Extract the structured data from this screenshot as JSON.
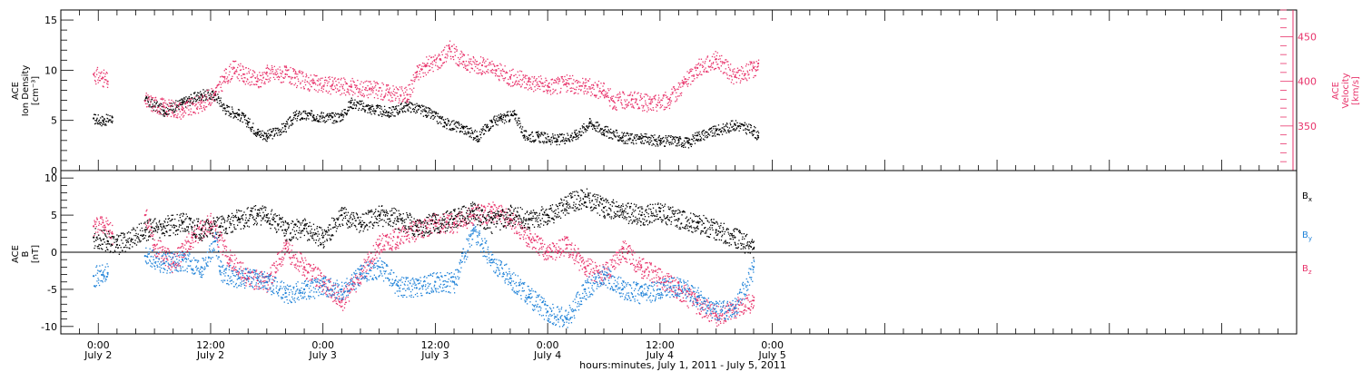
{
  "colors": {
    "axis": "#000000",
    "ion_density": "#000000",
    "velocity": "#e8336b",
    "bx": "#000000",
    "by": "#1f82d8",
    "bz": "#e8336b"
  },
  "x_axis": {
    "range_hours": [
      -4,
      128
    ],
    "ticks": [
      {
        "hour": 0,
        "time": "0:00",
        "day": "July 2"
      },
      {
        "hour": 12,
        "time": "12:00",
        "day": "July 2"
      },
      {
        "hour": 24,
        "time": "0:00",
        "day": "July 3"
      },
      {
        "hour": 36,
        "time": "12:00",
        "day": "July 3"
      },
      {
        "hour": 48,
        "time": "0:00",
        "day": "July 4"
      },
      {
        "hour": 60,
        "time": "12:00",
        "day": "July 4"
      },
      {
        "hour": 72,
        "time": "0:00",
        "day": "July 5"
      }
    ],
    "label": "hours:minutes, July  1, 2011 - July  5, 2011"
  },
  "chart_data": [
    {
      "type": "scatter",
      "panel": "top",
      "ylabel_left": [
        "ACE",
        "Ion Density",
        "[cm⁻³]"
      ],
      "ylabel_right": [
        "ACE",
        "Velocity",
        "[km/s]"
      ],
      "ylim_left": [
        0,
        16
      ],
      "yticks_left": [
        0,
        5,
        10,
        15
      ],
      "ylim_right": [
        300,
        480
      ],
      "yticks_right": [
        350,
        400,
        450
      ],
      "series": [
        {
          "axis": "left",
          "color_key": "ion_density",
          "points": [
            [
              -0.5,
              5.2
            ],
            [
              0.5,
              5.0
            ],
            [
              1.5,
              5.3
            ],
            [
              5.0,
              7.0
            ],
            [
              7.0,
              6.0
            ],
            [
              9.0,
              6.8
            ],
            [
              11.0,
              7.6
            ],
            [
              12.5,
              7.5
            ],
            [
              13.5,
              6.2
            ],
            [
              15.0,
              5.6
            ],
            [
              16.0,
              4.8
            ],
            [
              17.0,
              3.8
            ],
            [
              18.0,
              3.5
            ],
            [
              20.0,
              4.4
            ],
            [
              21.0,
              5.5
            ],
            [
              23.0,
              5.5
            ],
            [
              25.0,
              5.3
            ],
            [
              26.0,
              5.5
            ],
            [
              27.0,
              6.8
            ],
            [
              29.0,
              6.2
            ],
            [
              31.0,
              5.8
            ],
            [
              33.0,
              6.5
            ],
            [
              35.0,
              5.9
            ],
            [
              37.0,
              4.8
            ],
            [
              39.0,
              4.2
            ],
            [
              40.5,
              3.4
            ],
            [
              42.0,
              4.9
            ],
            [
              43.0,
              5.2
            ],
            [
              44.5,
              5.6
            ],
            [
              45.5,
              3.5
            ],
            [
              47.0,
              3.4
            ],
            [
              49.0,
              3.1
            ],
            [
              51.0,
              3.6
            ],
            [
              52.5,
              4.8
            ],
            [
              54.0,
              4.0
            ],
            [
              56.0,
              3.3
            ],
            [
              58.0,
              3.2
            ],
            [
              60.0,
              3.0
            ],
            [
              62.0,
              3.0
            ],
            [
              63.0,
              2.8
            ],
            [
              64.0,
              3.5
            ],
            [
              66.0,
              4.0
            ],
            [
              68.0,
              4.6
            ],
            [
              70.0,
              4.0
            ],
            [
              70.5,
              3.3
            ]
          ]
        },
        {
          "axis": "right",
          "color_key": "velocity",
          "points": [
            [
              -0.5,
              408
            ],
            [
              0.5,
              404
            ],
            [
              1.0,
              400
            ],
            [
              5.0,
              378
            ],
            [
              7.0,
              372
            ],
            [
              9.0,
              368
            ],
            [
              11.0,
              376
            ],
            [
              12.5,
              388
            ],
            [
              13.5,
              405
            ],
            [
              14.5,
              415
            ],
            [
              15.5,
              408
            ],
            [
              17.0,
              400
            ],
            [
              18.0,
              410
            ],
            [
              20.0,
              408
            ],
            [
              21.0,
              404
            ],
            [
              23.0,
              398
            ],
            [
              25.0,
              396
            ],
            [
              27.0,
              394
            ],
            [
              29.0,
              392
            ],
            [
              31.0,
              388
            ],
            [
              33.0,
              385
            ],
            [
              34.0,
              410
            ],
            [
              35.0,
              418
            ],
            [
              36.5,
              425
            ],
            [
              37.5,
              437
            ],
            [
              39.0,
              422
            ],
            [
              41.0,
              418
            ],
            [
              42.5,
              412
            ],
            [
              44.0,
              405
            ],
            [
              46.0,
              400
            ],
            [
              48.0,
              395
            ],
            [
              50.0,
              398
            ],
            [
              52.0,
              395
            ],
            [
              54.0,
              390
            ],
            [
              55.0,
              378
            ],
            [
              57.0,
              380
            ],
            [
              59.0,
              375
            ],
            [
              61.0,
              380
            ],
            [
              62.5,
              398
            ],
            [
              64.0,
              415
            ],
            [
              66.0,
              425
            ],
            [
              68.0,
              405
            ],
            [
              70.0,
              415
            ],
            [
              70.5,
              420
            ]
          ]
        }
      ]
    },
    {
      "type": "scatter",
      "panel": "bottom",
      "ylabel_left": [
        "ACE",
        "B",
        "[nT]"
      ],
      "ylim": [
        -11,
        11
      ],
      "yticks": [
        -10,
        -5,
        0,
        5,
        10
      ],
      "zero_line": true,
      "legend": [
        {
          "text": "B",
          "sub": "x",
          "color_key": "bx"
        },
        {
          "text": "B",
          "sub": "y",
          "color_key": "by"
        },
        {
          "text": "B",
          "sub": "z",
          "color_key": "bz"
        }
      ],
      "series": [
        {
          "color_key": "bx",
          "points": [
            [
              -0.5,
              2.0
            ],
            [
              1.0,
              1.5
            ],
            [
              2.0,
              1.0
            ],
            [
              5.0,
              3.0
            ],
            [
              7.0,
              3.5
            ],
            [
              9.0,
              4.0
            ],
            [
              11.0,
              3.0
            ],
            [
              13.0,
              3.5
            ],
            [
              15.0,
              4.5
            ],
            [
              17.0,
              5.2
            ],
            [
              18.0,
              5.0
            ],
            [
              20.0,
              3.0
            ],
            [
              22.0,
              3.2
            ],
            [
              24.0,
              2.0
            ],
            [
              26.0,
              5.0
            ],
            [
              28.0,
              4.0
            ],
            [
              30.0,
              5.0
            ],
            [
              32.0,
              4.5
            ],
            [
              34.0,
              3.5
            ],
            [
              36.0,
              4.0
            ],
            [
              38.0,
              4.5
            ],
            [
              40.0,
              5.5
            ],
            [
              42.0,
              4.0
            ],
            [
              44.0,
              5.0
            ],
            [
              46.0,
              4.5
            ],
            [
              48.0,
              5.0
            ],
            [
              50.0,
              6.5
            ],
            [
              52.0,
              7.5
            ],
            [
              54.0,
              6.0
            ],
            [
              56.0,
              5.5
            ],
            [
              58.0,
              5.0
            ],
            [
              60.0,
              5.5
            ],
            [
              62.0,
              4.5
            ],
            [
              64.0,
              4.0
            ],
            [
              66.0,
              3.0
            ],
            [
              68.0,
              2.0
            ],
            [
              70.0,
              0.5
            ]
          ]
        },
        {
          "color_key": "by",
          "points": [
            [
              -0.5,
              -3.2
            ],
            [
              0.5,
              -3.0
            ],
            [
              1.0,
              -2.8
            ],
            [
              5.0,
              -0.5
            ],
            [
              7.0,
              -1.5
            ],
            [
              9.0,
              -1.0
            ],
            [
              11.0,
              -2.0
            ],
            [
              12.5,
              1.5
            ],
            [
              13.0,
              -2.5
            ],
            [
              15.0,
              -3.5
            ],
            [
              17.0,
              -3.5
            ],
            [
              18.0,
              -4.0
            ],
            [
              20.0,
              -5.5
            ],
            [
              22.0,
              -5.0
            ],
            [
              24.0,
              -4.5
            ],
            [
              26.0,
              -5.0
            ],
            [
              28.0,
              -3.0
            ],
            [
              30.0,
              -2.0
            ],
            [
              32.0,
              -4.5
            ],
            [
              34.0,
              -4.8
            ],
            [
              36.0,
              -4.0
            ],
            [
              38.0,
              -4.0
            ],
            [
              40.0,
              3.0
            ],
            [
              42.0,
              -1.0
            ],
            [
              44.0,
              -3.5
            ],
            [
              46.0,
              -6.0
            ],
            [
              48.0,
              -8.0
            ],
            [
              50.0,
              -9.0
            ],
            [
              52.0,
              -5.0
            ],
            [
              54.0,
              -3.0
            ],
            [
              56.0,
              -5.0
            ],
            [
              58.0,
              -5.5
            ],
            [
              60.0,
              -5.0
            ],
            [
              62.0,
              -4.5
            ],
            [
              64.0,
              -6.0
            ],
            [
              66.0,
              -8.0
            ],
            [
              68.0,
              -7.5
            ],
            [
              70.0,
              -2.0
            ]
          ]
        },
        {
          "color_key": "bz",
          "points": [
            [
              -0.5,
              3.5
            ],
            [
              0.5,
              4.0
            ],
            [
              1.5,
              2.5
            ],
            [
              5.0,
              5.0
            ],
            [
              6.0,
              1.0
            ],
            [
              8.0,
              -1.5
            ],
            [
              10.0,
              2.0
            ],
            [
              12.0,
              4.0
            ],
            [
              14.0,
              -1.0
            ],
            [
              16.0,
              -3.5
            ],
            [
              18.0,
              -4.0
            ],
            [
              20.0,
              0.5
            ],
            [
              22.0,
              -2.0
            ],
            [
              24.0,
              -4.0
            ],
            [
              26.0,
              -6.5
            ],
            [
              28.0,
              -3.0
            ],
            [
              30.0,
              1.0
            ],
            [
              32.0,
              2.0
            ],
            [
              34.0,
              3.0
            ],
            [
              36.0,
              4.0
            ],
            [
              38.0,
              4.0
            ],
            [
              40.0,
              5.0
            ],
            [
              42.0,
              5.5
            ],
            [
              44.0,
              4.5
            ],
            [
              46.0,
              2.0
            ],
            [
              48.0,
              0.0
            ],
            [
              50.0,
              1.0
            ],
            [
              52.0,
              -2.0
            ],
            [
              54.0,
              -3.0
            ],
            [
              56.0,
              0.5
            ],
            [
              58.0,
              -2.0
            ],
            [
              60.0,
              -3.5
            ],
            [
              62.0,
              -5.0
            ],
            [
              64.0,
              -7.0
            ],
            [
              66.0,
              -8.5
            ],
            [
              68.0,
              -7.5
            ],
            [
              70.0,
              -6.5
            ]
          ]
        }
      ]
    }
  ]
}
